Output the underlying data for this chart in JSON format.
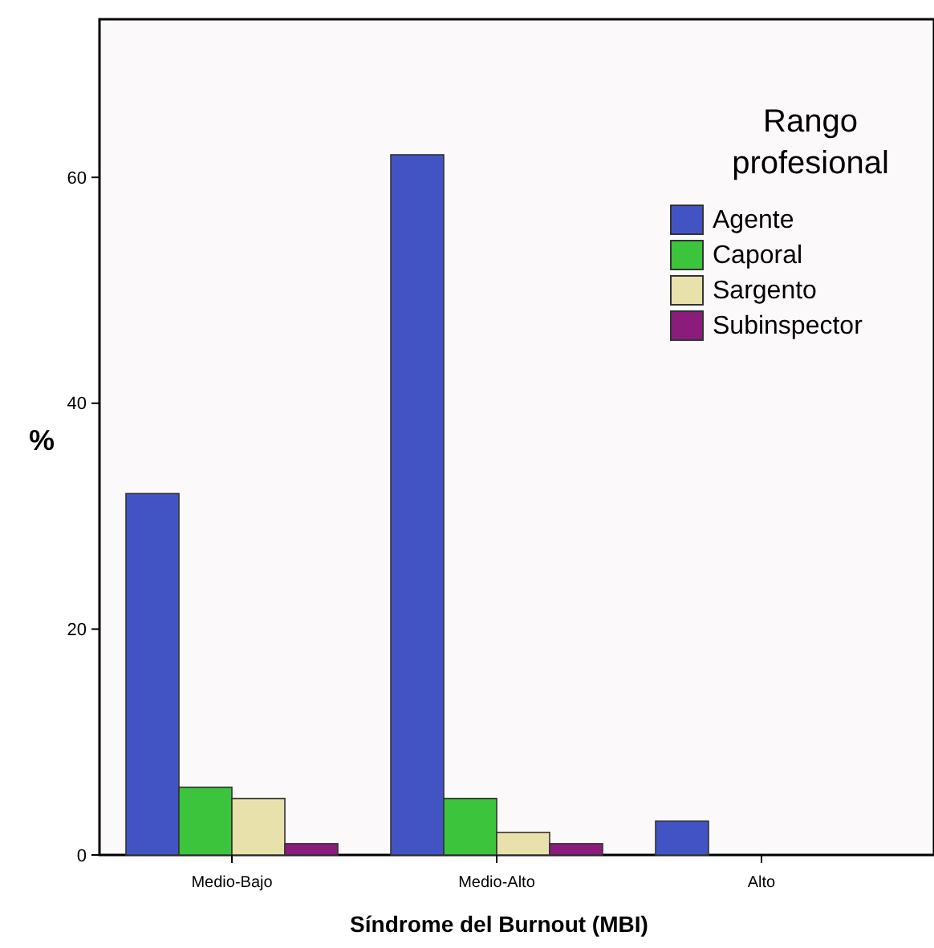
{
  "chart_data": {
    "type": "bar",
    "xlabel": "Síndrome del Burnout (MBI)",
    "ylabel": "%",
    "legend_title": "Rango\nprofesional",
    "categories": [
      "Medio-Bajo",
      "Medio-Alto",
      "Alto"
    ],
    "series": [
      {
        "name": "Agente",
        "color": "#4254c4",
        "values": [
          32,
          62,
          3
        ]
      },
      {
        "name": "Caporal",
        "color": "#3cc43c",
        "values": [
          6,
          5,
          null
        ]
      },
      {
        "name": "Sargento",
        "color": "#e9e1ac",
        "values": [
          5,
          2,
          null
        ]
      },
      {
        "name": "Subinspector",
        "color": "#8c1c7c",
        "values": [
          1,
          1,
          null
        ]
      }
    ],
    "ylim": [
      0,
      74
    ],
    "yticks": [
      0,
      20,
      40,
      60
    ],
    "grid": false,
    "legend": "top right"
  }
}
